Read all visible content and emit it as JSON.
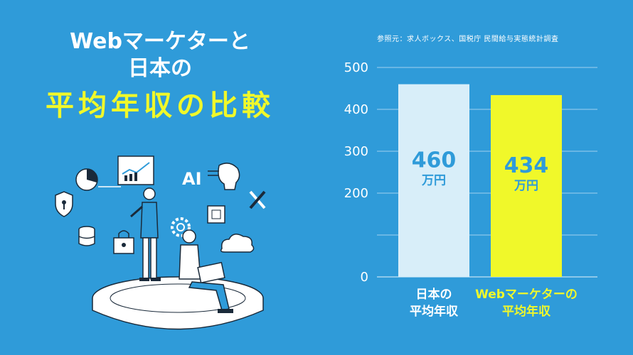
{
  "title": {
    "line1": "Webマーケターと",
    "line2": "日本の",
    "line3": "平均年収の比較"
  },
  "source": "参照元：求人ボックス、国税庁 民間給与実態統計調査",
  "illustration": {
    "ai_text": "AI"
  },
  "colors": {
    "background": "#2f9bd9",
    "bar_japan": "#d8eef9",
    "bar_web": "#f0f82a",
    "label_japan": "#ffffff",
    "label_web": "#f0f82a"
  },
  "chart_data": {
    "type": "bar",
    "categories": [
      "日本の平均年収",
      "Webマーケターの平均年収"
    ],
    "category_lines": [
      [
        "日本の",
        "平均年収"
      ],
      [
        "Webマーケターの",
        "平均年収"
      ]
    ],
    "values": [
      460,
      434
    ],
    "value_labels": [
      "460",
      "434"
    ],
    "unit_label": "万円",
    "ylim": [
      0,
      500
    ],
    "yticks": [
      0,
      200,
      300,
      400,
      500
    ],
    "grid": true,
    "title": "",
    "xlabel": "",
    "ylabel": ""
  }
}
